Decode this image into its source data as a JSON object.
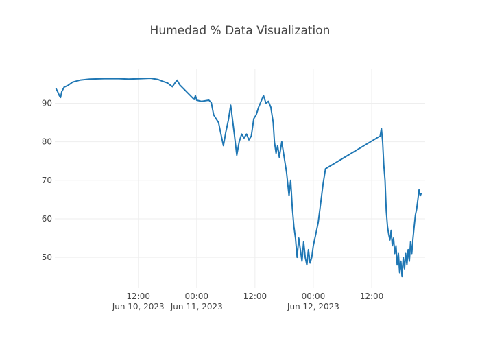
{
  "chart_data": {
    "type": "line",
    "title": "Humedad % Data Visualization",
    "xlabel": "",
    "ylabel": "",
    "grid": true,
    "legend": "none",
    "x_range": [
      "2023-06-09T18:50",
      "2023-06-12T23:00"
    ],
    "ylim": [
      42,
      99
    ],
    "y_ticks": [
      50,
      60,
      70,
      80,
      90
    ],
    "x_ticks": [
      {
        "t": "2023-06-10T12:00",
        "line1": "12:00",
        "line2": "Jun 10, 2023"
      },
      {
        "t": "2023-06-11T00:00",
        "line1": "00:00",
        "line2": "Jun 11, 2023"
      },
      {
        "t": "2023-06-11T12:00",
        "line1": "12:00",
        "line2": ""
      },
      {
        "t": "2023-06-12T00:00",
        "line1": "00:00",
        "line2": "Jun 12, 2023"
      },
      {
        "t": "2023-06-12T12:00",
        "line1": "12:00",
        "line2": ""
      }
    ],
    "series": [
      {
        "color": "#1f77b4",
        "points": [
          [
            "2023-06-09T19:05",
            93.8
          ],
          [
            "2023-06-09T19:25",
            93.0
          ],
          [
            "2023-06-09T19:45",
            92.0
          ],
          [
            "2023-06-09T20:00",
            91.5
          ],
          [
            "2023-06-09T20:15",
            93.0
          ],
          [
            "2023-06-09T20:45",
            94.2
          ],
          [
            "2023-06-09T21:30",
            94.6
          ],
          [
            "2023-06-09T22:30",
            95.5
          ],
          [
            "2023-06-10T00:00",
            96.0
          ],
          [
            "2023-06-10T02:00",
            96.3
          ],
          [
            "2023-06-10T05:00",
            96.4
          ],
          [
            "2023-06-10T08:00",
            96.4
          ],
          [
            "2023-06-10T10:00",
            96.3
          ],
          [
            "2023-06-10T12:30",
            96.4
          ],
          [
            "2023-06-10T14:30",
            96.5
          ],
          [
            "2023-06-10T16:00",
            96.2
          ],
          [
            "2023-06-10T17:00",
            95.7
          ],
          [
            "2023-06-10T18:00",
            95.3
          ],
          [
            "2023-06-10T19:00",
            94.3
          ],
          [
            "2023-06-10T19:30",
            95.2
          ],
          [
            "2023-06-10T20:00",
            96.0
          ],
          [
            "2023-06-10T20:30",
            94.8
          ],
          [
            "2023-06-10T23:30",
            91.0
          ],
          [
            "2023-06-10T23:45",
            92.0
          ],
          [
            "2023-06-11T00:00",
            90.8
          ],
          [
            "2023-06-11T01:00",
            90.5
          ],
          [
            "2023-06-11T02:30",
            90.8
          ],
          [
            "2023-06-11T03:00",
            90.2
          ],
          [
            "2023-06-11T03:30",
            87.0
          ],
          [
            "2023-06-11T04:00",
            86.0
          ],
          [
            "2023-06-11T04:30",
            85.0
          ],
          [
            "2023-06-11T05:00",
            82.0
          ],
          [
            "2023-06-11T05:30",
            79.0
          ],
          [
            "2023-06-11T06:00",
            82.5
          ],
          [
            "2023-06-11T06:30",
            85.5
          ],
          [
            "2023-06-11T07:00",
            89.5
          ],
          [
            "2023-06-11T07:15",
            87.0
          ],
          [
            "2023-06-11T07:45",
            82.0
          ],
          [
            "2023-06-11T08:15",
            76.5
          ],
          [
            "2023-06-11T08:45",
            80.0
          ],
          [
            "2023-06-11T09:15",
            82.0
          ],
          [
            "2023-06-11T09:45",
            81.0
          ],
          [
            "2023-06-11T10:15",
            82.0
          ],
          [
            "2023-06-11T10:45",
            80.5
          ],
          [
            "2023-06-11T11:15",
            81.5
          ],
          [
            "2023-06-11T11:45",
            86.0
          ],
          [
            "2023-06-11T12:15",
            87.0
          ],
          [
            "2023-06-11T12:45",
            89.0
          ],
          [
            "2023-06-11T13:15",
            90.5
          ],
          [
            "2023-06-11T13:45",
            92.0
          ],
          [
            "2023-06-11T14:15",
            90.0
          ],
          [
            "2023-06-11T14:45",
            90.5
          ],
          [
            "2023-06-11T15:15",
            89.0
          ],
          [
            "2023-06-11T15:45",
            85.0
          ],
          [
            "2023-06-11T16:00",
            80.0
          ],
          [
            "2023-06-11T16:20",
            77.0
          ],
          [
            "2023-06-11T16:40",
            79.0
          ],
          [
            "2023-06-11T17:00",
            76.0
          ],
          [
            "2023-06-11T17:30",
            80.0
          ],
          [
            "2023-06-11T18:00",
            76.0
          ],
          [
            "2023-06-11T18:30",
            72.0
          ],
          [
            "2023-06-11T19:00",
            66.0
          ],
          [
            "2023-06-11T19:20",
            70.0
          ],
          [
            "2023-06-11T19:40",
            63.0
          ],
          [
            "2023-06-11T20:00",
            58.0
          ],
          [
            "2023-06-11T20:20",
            55.0
          ],
          [
            "2023-06-11T20:40",
            50.0
          ],
          [
            "2023-06-11T21:00",
            55.0
          ],
          [
            "2023-06-11T21:20",
            52.0
          ],
          [
            "2023-06-11T21:40",
            49.0
          ],
          [
            "2023-06-11T22:00",
            54.0
          ],
          [
            "2023-06-11T22:20",
            50.0
          ],
          [
            "2023-06-11T22:40",
            48.0
          ],
          [
            "2023-06-11T23:00",
            52.0
          ],
          [
            "2023-06-11T23:20",
            48.5
          ],
          [
            "2023-06-11T23:40",
            50.0
          ],
          [
            "2023-06-12T00:00",
            53.0
          ],
          [
            "2023-06-12T00:30",
            56.0
          ],
          [
            "2023-06-12T01:00",
            59.0
          ],
          [
            "2023-06-12T01:30",
            64.0
          ],
          [
            "2023-06-12T02:00",
            69.0
          ],
          [
            "2023-06-12T02:30",
            73.0
          ],
          [
            "2023-06-12T13:45",
            81.5
          ],
          [
            "2023-06-12T14:00",
            83.5
          ],
          [
            "2023-06-12T14:15",
            80.0
          ],
          [
            "2023-06-12T14:30",
            74.0
          ],
          [
            "2023-06-12T14:45",
            70.0
          ],
          [
            "2023-06-12T15:00",
            62.0
          ],
          [
            "2023-06-12T15:15",
            58.0
          ],
          [
            "2023-06-12T15:30",
            56.0
          ],
          [
            "2023-06-12T15:45",
            54.5
          ],
          [
            "2023-06-12T16:00",
            57.0
          ],
          [
            "2023-06-12T16:15",
            53.0
          ],
          [
            "2023-06-12T16:30",
            55.0
          ],
          [
            "2023-06-12T16:45",
            51.0
          ],
          [
            "2023-06-12T17:00",
            53.0
          ],
          [
            "2023-06-12T17:15",
            48.0
          ],
          [
            "2023-06-12T17:30",
            51.0
          ],
          [
            "2023-06-12T17:45",
            46.0
          ],
          [
            "2023-06-12T18:00",
            49.0
          ],
          [
            "2023-06-12T18:15",
            45.0
          ],
          [
            "2023-06-12T18:30",
            50.0
          ],
          [
            "2023-06-12T18:45",
            47.0
          ],
          [
            "2023-06-12T19:00",
            51.0
          ],
          [
            "2023-06-12T19:15",
            48.0
          ],
          [
            "2023-06-12T19:30",
            52.0
          ],
          [
            "2023-06-12T19:45",
            49.0
          ],
          [
            "2023-06-12T20:00",
            54.0
          ],
          [
            "2023-06-12T20:15",
            51.0
          ],
          [
            "2023-06-12T20:30",
            55.0
          ],
          [
            "2023-06-12T20:45",
            58.0
          ],
          [
            "2023-06-12T21:00",
            61.0
          ],
          [
            "2023-06-12T21:15",
            62.5
          ],
          [
            "2023-06-12T21:30",
            65.0
          ],
          [
            "2023-06-12T21:45",
            67.5
          ],
          [
            "2023-06-12T22:00",
            66.0
          ],
          [
            "2023-06-12T22:10",
            66.5
          ]
        ]
      }
    ]
  }
}
